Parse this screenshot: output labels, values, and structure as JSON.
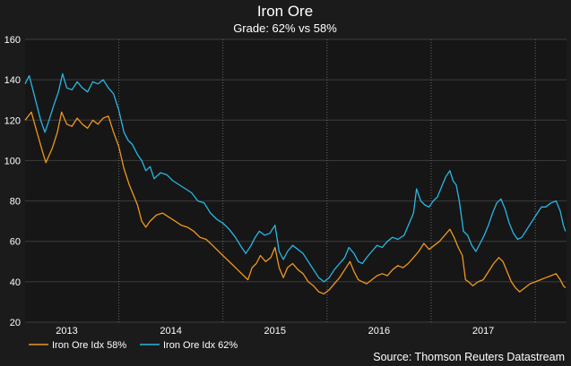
{
  "chart_data": {
    "type": "line",
    "title": "Iron Ore",
    "subtitle": "Grade: 62% vs 58%",
    "source": "Source: Thomson Reuters Datastream",
    "ylim": [
      20,
      160
    ],
    "y_ticks": [
      "20",
      "40",
      "60",
      "80",
      "100",
      "120",
      "140",
      "160"
    ],
    "x_ticks": [
      "2013",
      "2014",
      "2015",
      "2016",
      "2017"
    ],
    "xlim": [
      2012.6,
      2017.8
    ],
    "grid": true,
    "legend_position": "bottom-left",
    "colors": {
      "background": "#1b1b1b",
      "plot": "#161616",
      "grid": "#3c3c3c",
      "dotted": "#6a6a6a"
    },
    "series": [
      {
        "name": "Iron Ore Idx 58%",
        "color": "#f0961e",
        "points": [
          [
            2012.6,
            120
          ],
          [
            2012.66,
            124
          ],
          [
            2012.72,
            113
          ],
          [
            2012.77,
            104
          ],
          [
            2012.8,
            99
          ],
          [
            2012.86,
            106
          ],
          [
            2012.91,
            114
          ],
          [
            2012.95,
            124
          ],
          [
            2013.0,
            118
          ],
          [
            2013.05,
            117
          ],
          [
            2013.1,
            121
          ],
          [
            2013.15,
            118
          ],
          [
            2013.2,
            116
          ],
          [
            2013.25,
            120
          ],
          [
            2013.3,
            118
          ],
          [
            2013.35,
            121
          ],
          [
            2013.4,
            122
          ],
          [
            2013.45,
            114
          ],
          [
            2013.5,
            107
          ],
          [
            2013.55,
            96
          ],
          [
            2013.6,
            88
          ],
          [
            2013.64,
            83
          ],
          [
            2013.68,
            78
          ],
          [
            2013.72,
            70
          ],
          [
            2013.76,
            67
          ],
          [
            2013.8,
            70
          ],
          [
            2013.86,
            73
          ],
          [
            2013.92,
            74
          ],
          [
            2013.98,
            72
          ],
          [
            2014.04,
            70
          ],
          [
            2014.1,
            68
          ],
          [
            2014.16,
            67
          ],
          [
            2014.22,
            65
          ],
          [
            2014.28,
            62
          ],
          [
            2014.34,
            61
          ],
          [
            2014.4,
            58
          ],
          [
            2014.46,
            55
          ],
          [
            2014.52,
            52
          ],
          [
            2014.58,
            49
          ],
          [
            2014.64,
            46
          ],
          [
            2014.7,
            43
          ],
          [
            2014.74,
            41
          ],
          [
            2014.78,
            47
          ],
          [
            2014.82,
            49
          ],
          [
            2014.86,
            53
          ],
          [
            2014.91,
            50
          ],
          [
            2014.96,
            52
          ],
          [
            2015.0,
            57
          ],
          [
            2015.04,
            47
          ],
          [
            2015.08,
            42
          ],
          [
            2015.12,
            47
          ],
          [
            2015.17,
            49
          ],
          [
            2015.22,
            46
          ],
          [
            2015.27,
            44
          ],
          [
            2015.32,
            40
          ],
          [
            2015.37,
            38
          ],
          [
            2015.42,
            35
          ],
          [
            2015.47,
            34
          ],
          [
            2015.52,
            36
          ],
          [
            2015.57,
            39
          ],
          [
            2015.62,
            42
          ],
          [
            2015.67,
            46
          ],
          [
            2015.72,
            50
          ],
          [
            2015.76,
            45
          ],
          [
            2015.8,
            41
          ],
          [
            2015.84,
            40
          ],
          [
            2015.88,
            39
          ],
          [
            2015.93,
            41
          ],
          [
            2015.98,
            43
          ],
          [
            2016.03,
            44
          ],
          [
            2016.08,
            43
          ],
          [
            2016.13,
            46
          ],
          [
            2016.18,
            48
          ],
          [
            2016.23,
            47
          ],
          [
            2016.28,
            49
          ],
          [
            2016.33,
            52
          ],
          [
            2016.38,
            55
          ],
          [
            2016.43,
            59
          ],
          [
            2016.48,
            56
          ],
          [
            2016.53,
            58
          ],
          [
            2016.58,
            60
          ],
          [
            2016.63,
            63
          ],
          [
            2016.68,
            66
          ],
          [
            2016.72,
            62
          ],
          [
            2016.76,
            57
          ],
          [
            2016.8,
            53
          ],
          [
            2016.83,
            41
          ],
          [
            2016.86,
            40
          ],
          [
            2016.9,
            38
          ],
          [
            2016.95,
            40
          ],
          [
            2017.0,
            41
          ],
          [
            2017.05,
            45
          ],
          [
            2017.1,
            49
          ],
          [
            2017.15,
            52
          ],
          [
            2017.19,
            50
          ],
          [
            2017.23,
            45
          ],
          [
            2017.27,
            40
          ],
          [
            2017.31,
            37
          ],
          [
            2017.35,
            35
          ],
          [
            2017.4,
            37
          ],
          [
            2017.45,
            39
          ],
          [
            2017.5,
            40
          ],
          [
            2017.55,
            41
          ],
          [
            2017.6,
            42
          ],
          [
            2017.65,
            43
          ],
          [
            2017.7,
            44
          ],
          [
            2017.74,
            41
          ],
          [
            2017.77,
            38
          ],
          [
            2017.79,
            37
          ]
        ]
      },
      {
        "name": "Iron Ore Idx 62%",
        "color": "#29b6e3",
        "points": [
          [
            2012.6,
            138
          ],
          [
            2012.64,
            142
          ],
          [
            2012.7,
            130
          ],
          [
            2012.75,
            120
          ],
          [
            2012.79,
            114
          ],
          [
            2012.83,
            120
          ],
          [
            2012.88,
            128
          ],
          [
            2012.92,
            134
          ],
          [
            2012.96,
            143
          ],
          [
            2013.0,
            136
          ],
          [
            2013.05,
            135
          ],
          [
            2013.1,
            139
          ],
          [
            2013.15,
            136
          ],
          [
            2013.2,
            134
          ],
          [
            2013.25,
            139
          ],
          [
            2013.3,
            138
          ],
          [
            2013.35,
            140
          ],
          [
            2013.4,
            136
          ],
          [
            2013.45,
            133
          ],
          [
            2013.5,
            125
          ],
          [
            2013.55,
            114
          ],
          [
            2013.59,
            110
          ],
          [
            2013.63,
            108
          ],
          [
            2013.68,
            103
          ],
          [
            2013.72,
            100
          ],
          [
            2013.76,
            95
          ],
          [
            2013.8,
            97
          ],
          [
            2013.84,
            91
          ],
          [
            2013.9,
            94
          ],
          [
            2013.96,
            93
          ],
          [
            2014.02,
            90
          ],
          [
            2014.08,
            88
          ],
          [
            2014.14,
            86
          ],
          [
            2014.2,
            84
          ],
          [
            2014.26,
            80
          ],
          [
            2014.32,
            79
          ],
          [
            2014.38,
            74
          ],
          [
            2014.44,
            71
          ],
          [
            2014.5,
            69
          ],
          [
            2014.56,
            66
          ],
          [
            2014.62,
            62
          ],
          [
            2014.68,
            57
          ],
          [
            2014.72,
            54
          ],
          [
            2014.77,
            58
          ],
          [
            2014.81,
            62
          ],
          [
            2014.85,
            65
          ],
          [
            2014.9,
            63
          ],
          [
            2014.95,
            64
          ],
          [
            2015.0,
            68
          ],
          [
            2015.04,
            55
          ],
          [
            2015.08,
            51
          ],
          [
            2015.12,
            55
          ],
          [
            2015.17,
            58
          ],
          [
            2015.22,
            56
          ],
          [
            2015.27,
            54
          ],
          [
            2015.32,
            50
          ],
          [
            2015.37,
            46
          ],
          [
            2015.42,
            42
          ],
          [
            2015.47,
            40
          ],
          [
            2015.52,
            42
          ],
          [
            2015.57,
            46
          ],
          [
            2015.62,
            49
          ],
          [
            2015.67,
            52
          ],
          [
            2015.71,
            57
          ],
          [
            2015.76,
            54
          ],
          [
            2015.8,
            50
          ],
          [
            2015.84,
            49
          ],
          [
            2015.88,
            52
          ],
          [
            2015.93,
            55
          ],
          [
            2015.98,
            58
          ],
          [
            2016.03,
            57
          ],
          [
            2016.08,
            60
          ],
          [
            2016.13,
            62
          ],
          [
            2016.18,
            61
          ],
          [
            2016.24,
            63
          ],
          [
            2016.29,
            69
          ],
          [
            2016.33,
            74
          ],
          [
            2016.36,
            86
          ],
          [
            2016.4,
            80
          ],
          [
            2016.44,
            78
          ],
          [
            2016.48,
            77
          ],
          [
            2016.52,
            80
          ],
          [
            2016.56,
            82
          ],
          [
            2016.6,
            87
          ],
          [
            2016.64,
            92
          ],
          [
            2016.68,
            95
          ],
          [
            2016.71,
            90
          ],
          [
            2016.74,
            88
          ],
          [
            2016.77,
            80
          ],
          [
            2016.81,
            65
          ],
          [
            2016.85,
            63
          ],
          [
            2016.89,
            58
          ],
          [
            2016.93,
            55
          ],
          [
            2016.97,
            59
          ],
          [
            2017.01,
            63
          ],
          [
            2017.05,
            68
          ],
          [
            2017.09,
            74
          ],
          [
            2017.13,
            79
          ],
          [
            2017.17,
            81
          ],
          [
            2017.21,
            76
          ],
          [
            2017.25,
            69
          ],
          [
            2017.29,
            64
          ],
          [
            2017.33,
            61
          ],
          [
            2017.37,
            62
          ],
          [
            2017.42,
            66
          ],
          [
            2017.47,
            70
          ],
          [
            2017.52,
            74
          ],
          [
            2017.56,
            77
          ],
          [
            2017.6,
            77
          ],
          [
            2017.65,
            79
          ],
          [
            2017.7,
            80
          ],
          [
            2017.74,
            75
          ],
          [
            2017.77,
            68
          ],
          [
            2017.79,
            65
          ]
        ]
      }
    ]
  }
}
